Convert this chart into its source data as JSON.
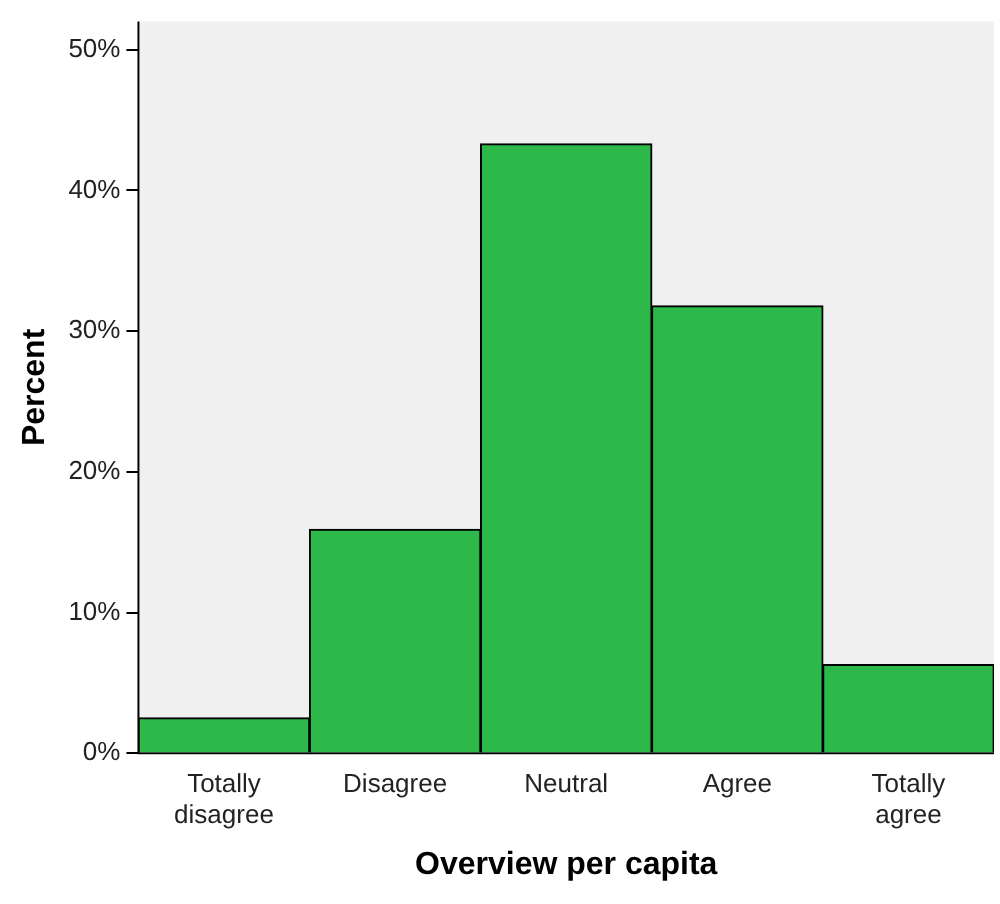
{
  "chart_data": {
    "type": "bar",
    "xlabel": "Overview per capita",
    "ylabel": "Percent",
    "categories": [
      "Totally disagree",
      "Disagree",
      "Neutral",
      "Agree",
      "Totally agree"
    ],
    "values": [
      2.5,
      15.9,
      43.3,
      31.8,
      6.3
    ],
    "color": "#2db84a",
    "ylim": [
      0,
      52
    ],
    "yticks": [
      {
        "value": 0,
        "label": "0%"
      },
      {
        "value": 10,
        "label": "10%"
      },
      {
        "value": 20,
        "label": "20%"
      },
      {
        "value": 30,
        "label": "30%"
      },
      {
        "value": 40,
        "label": "40%"
      },
      {
        "value": 50,
        "label": "50%"
      }
    ],
    "grid": false,
    "legend": false
  }
}
